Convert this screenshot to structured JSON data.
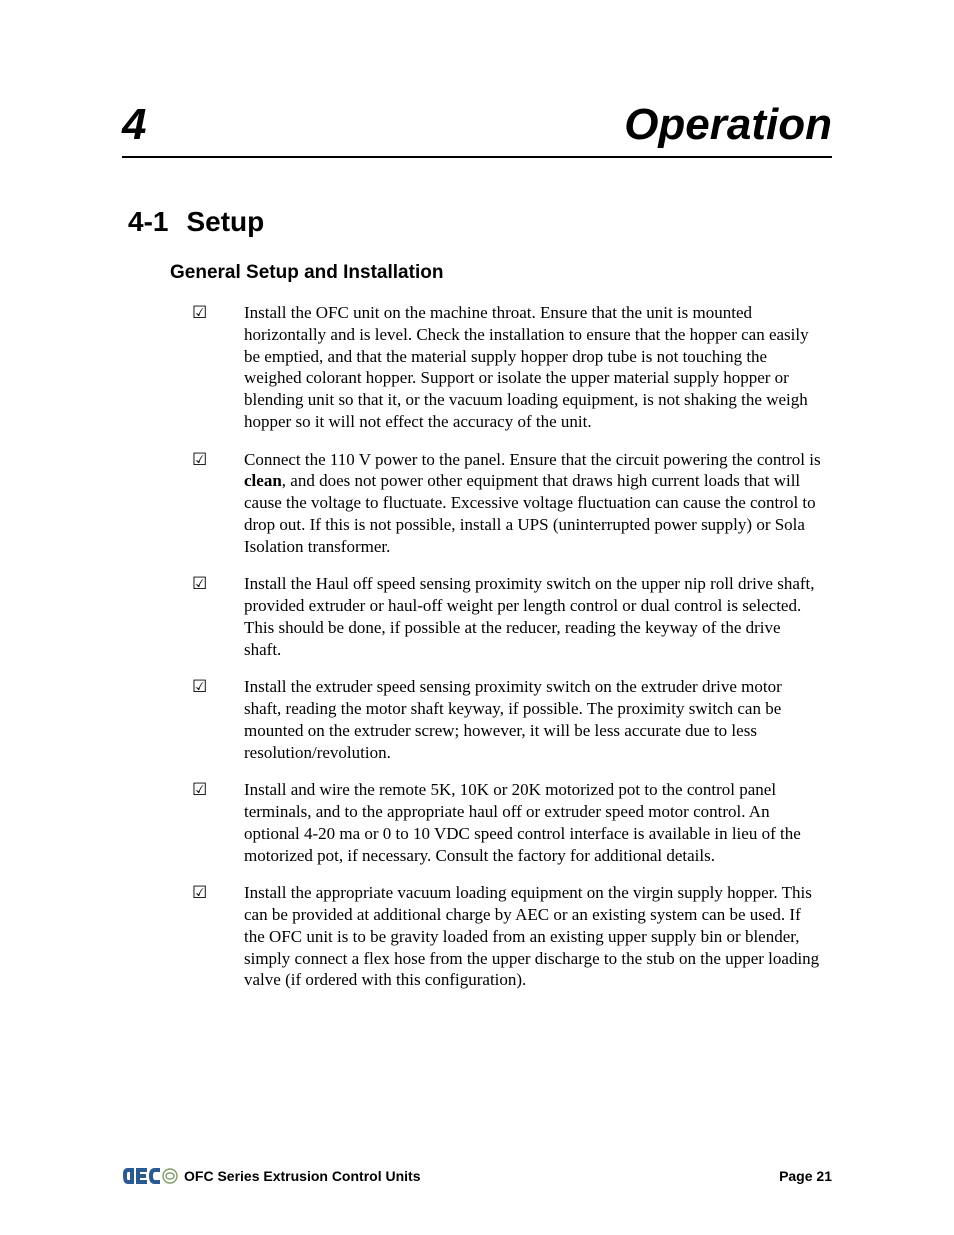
{
  "chapter": {
    "number": "4",
    "title": "Operation"
  },
  "section": {
    "number": "4-1",
    "title": "Setup"
  },
  "subsection": {
    "title": "General Setup and Installation"
  },
  "checkbox_glyph": "☑",
  "checklist": [
    {
      "html": "Install the OFC unit on the machine throat. Ensure that the unit is mounted horizontally and is level. Check the installation to ensure that the hopper can easily be emptied, and that the material supply hopper drop tube is not touching the weighed colorant hopper. Support or isolate the upper material supply hopper or blending unit so that it, or the vacuum loading equipment, is not shaking the weigh hopper so it will not effect the accuracy of the unit."
    },
    {
      "html": "Connect the 110 V power to the panel. Ensure that the circuit powering the control is <b>clean</b>, and does not power other equipment that draws high current loads that will cause the voltage to fluctuate. Excessive voltage fluctuation can cause the control to drop out. If this is not possible, install a UPS (uninterrupted power supply) or Sola Isolation transformer."
    },
    {
      "html": "Install the Haul off speed sensing proximity switch on the upper nip roll drive shaft, provided extruder or haul-off weight per length control or dual control is selected. This should be done, if possible at the reducer, reading the keyway of the drive shaft."
    },
    {
      "html": "Install the extruder speed sensing proximity switch on the extruder drive motor shaft, reading the motor shaft keyway, if possible. The proximity switch can be mounted on the extruder screw; however, it will be less accurate due to less resolution/revolution."
    },
    {
      "html": "Install and wire the remote 5K, 10K or 20K motorized pot to the control panel terminals, and to the appropriate haul off or extruder speed motor control. An optional 4-20 ma or 0 to 10 VDC speed control interface is available in lieu of the motorized pot, if necessary. Consult the factory for additional details."
    },
    {
      "html": "Install the appropriate vacuum loading equipment on the virgin supply hopper. This can be provided at additional charge by AEC or an existing system can be used. If the OFC unit is to be gravity loaded from an existing upper supply bin or blender, simply connect a flex hose from the upper discharge to the stub on the upper loading valve (if ordered with this configuration)."
    }
  ],
  "footer": {
    "doc_title": "OFC Series Extrusion Control Units",
    "page_label": "Page 21"
  },
  "logo": {
    "text_color": "#2a5a8f",
    "swirl_color": "#7f9b66"
  }
}
